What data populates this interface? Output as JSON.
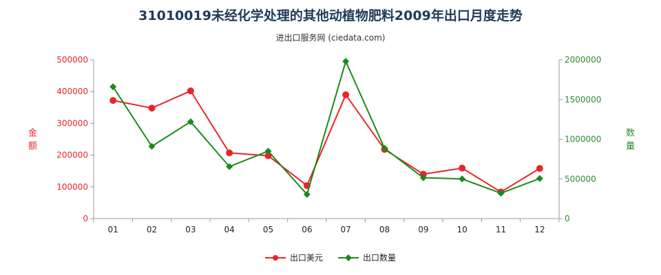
{
  "header": {
    "title": "31010019未经化学处理的其他动植物肥料2009年出口月度走势",
    "subtitle": "进出口服务网 (ciedata.com)"
  },
  "axes": {
    "left_label": "金额",
    "right_label": "数量"
  },
  "colors": {
    "usd": "#e8262a",
    "qty": "#1a8a1a",
    "axis_left": "#e8262a",
    "axis_right": "#2e8b2e"
  },
  "chart_data": {
    "type": "line",
    "categories": [
      "01",
      "02",
      "03",
      "04",
      "05",
      "06",
      "07",
      "08",
      "09",
      "10",
      "11",
      "12"
    ],
    "series": [
      {
        "name": "出口美元",
        "axis": "left",
        "marker": "circle",
        "values": [
          372000,
          348000,
          402000,
          207000,
          198000,
          104000,
          390000,
          218000,
          140000,
          159000,
          84000,
          158000
        ]
      },
      {
        "name": "出口数量",
        "axis": "right",
        "marker": "diamond",
        "values": [
          1660000,
          910000,
          1220000,
          655000,
          850000,
          305000,
          1980000,
          885000,
          515000,
          500000,
          320000,
          505000
        ]
      }
    ],
    "ylim_left": [
      0,
      500000
    ],
    "yticks_left": [
      "0",
      "100000",
      "200000",
      "300000",
      "400000",
      "500000"
    ],
    "ylim_right": [
      0,
      2000000
    ],
    "yticks_right": [
      "0",
      "500000",
      "1000000",
      "1500000",
      "2000000"
    ],
    "grid": false,
    "legend_position": "bottom"
  }
}
